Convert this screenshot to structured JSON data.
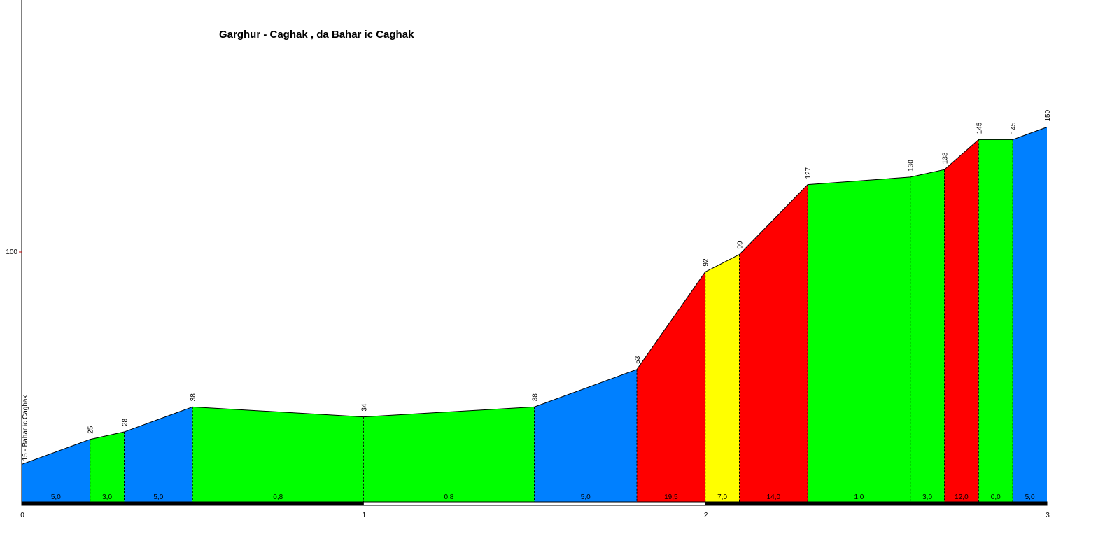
{
  "chart_data": {
    "type": "area",
    "title": "Garghur - Caghak , da Bahar ic Caghak",
    "start_label": "15 - Bahar ic Caghak",
    "x_ticks": [
      "0",
      "1",
      "2",
      "3"
    ],
    "y_ticks": [
      {
        "value": 100,
        "label": "100"
      }
    ],
    "xlim": [
      0,
      3
    ],
    "ylim": [
      0,
      200
    ],
    "points": [
      {
        "x": 0.0,
        "y": 15,
        "label": ""
      },
      {
        "x": 0.2,
        "y": 25,
        "label": "25"
      },
      {
        "x": 0.3,
        "y": 28,
        "label": "28"
      },
      {
        "x": 0.5,
        "y": 38,
        "label": "38"
      },
      {
        "x": 1.0,
        "y": 34,
        "label": "34"
      },
      {
        "x": 1.5,
        "y": 38,
        "label": "38"
      },
      {
        "x": 1.8,
        "y": 53,
        "label": "53"
      },
      {
        "x": 2.0,
        "y": 92,
        "label": "92"
      },
      {
        "x": 2.1,
        "y": 99,
        "label": "99"
      },
      {
        "x": 2.3,
        "y": 127,
        "label": "127"
      },
      {
        "x": 2.6,
        "y": 130,
        "label": "130"
      },
      {
        "x": 2.7,
        "y": 133,
        "label": "133"
      },
      {
        "x": 2.8,
        "y": 145,
        "label": "145"
      },
      {
        "x": 2.9,
        "y": 145,
        "label": "145"
      },
      {
        "x": 3.0,
        "y": 150,
        "label": "150"
      }
    ],
    "segments": [
      {
        "grade": "5,0",
        "color": "#0080FF"
      },
      {
        "grade": "3,0",
        "color": "#00FF00"
      },
      {
        "grade": "5,0",
        "color": "#0080FF"
      },
      {
        "grade": "0,8",
        "color": "#00FF00"
      },
      {
        "grade": "0,8",
        "color": "#00FF00"
      },
      {
        "grade": "5,0",
        "color": "#0080FF"
      },
      {
        "grade": "19,5",
        "color": "#FF0000"
      },
      {
        "grade": "7,0",
        "color": "#FFFF00"
      },
      {
        "grade": "14,0",
        "color": "#FF0000"
      },
      {
        "grade": "1,0",
        "color": "#00FF00"
      },
      {
        "grade": "3,0",
        "color": "#00FF00"
      },
      {
        "grade": "12,0",
        "color": "#FF0000"
      },
      {
        "grade": "0,0",
        "color": "#00FF00"
      },
      {
        "grade": "5,0",
        "color": "#0080FF"
      }
    ],
    "grid": false
  }
}
